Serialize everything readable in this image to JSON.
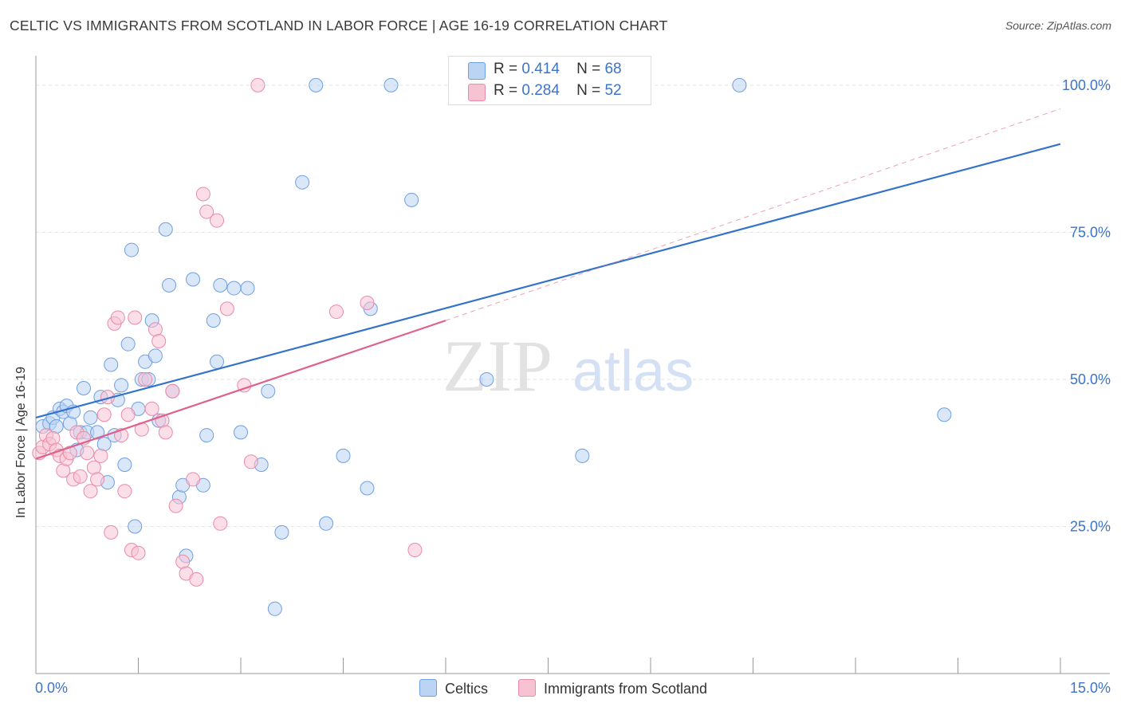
{
  "title": "CELTIC VS IMMIGRANTS FROM SCOTLAND IN LABOR FORCE | AGE 16-19 CORRELATION CHART",
  "source": "Source: ZipAtlas.com",
  "watermark": {
    "zip": "ZIP",
    "atlas": "atlas"
  },
  "colors": {
    "celtics_fill": "#bcd4f4",
    "celtics_stroke": "#6f9fe0",
    "celtics_line": "#3373cc",
    "scot_fill": "#f7c3d3",
    "scot_stroke": "#e98ba8",
    "scot_line": "#e0608c",
    "axis_label": "#3d74c8",
    "grid": "#e3e3e3"
  },
  "legend": {
    "r_label": "R =",
    "n_label": "N =",
    "entries": [
      {
        "r": "0.414",
        "n": "68"
      },
      {
        "r": "0.284",
        "n": "52"
      }
    ]
  },
  "chart_data": {
    "type": "scatter",
    "title": "CELTIC VS IMMIGRANTS FROM SCOTLAND IN LABOR FORCE | AGE 16-19 CORRELATION CHART",
    "xlabel": "",
    "ylabel": "In Labor Force | Age 16-19",
    "xlim": [
      0,
      15
    ],
    "ylim": [
      0,
      105
    ],
    "x_tick_labels": [
      "0.0%",
      "15.0%"
    ],
    "y_ticks": [
      25,
      50,
      75,
      100
    ],
    "y_tick_labels": [
      "25.0%",
      "50.0%",
      "75.0%",
      "100.0%"
    ],
    "grid": true,
    "legend_position": "bottom-center",
    "series": [
      {
        "name": "Celtics",
        "points": [
          [
            0.1,
            42
          ],
          [
            0.2,
            42.5
          ],
          [
            0.25,
            43.5
          ],
          [
            0.3,
            42
          ],
          [
            0.35,
            45
          ],
          [
            0.4,
            44.5
          ],
          [
            0.45,
            45.5
          ],
          [
            0.5,
            42.5
          ],
          [
            0.55,
            44.5
          ],
          [
            0.6,
            38
          ],
          [
            0.65,
            41
          ],
          [
            0.7,
            48.5
          ],
          [
            0.75,
            41
          ],
          [
            0.8,
            43.5
          ],
          [
            0.9,
            41
          ],
          [
            0.95,
            47
          ],
          [
            1.0,
            39
          ],
          [
            1.05,
            32.5
          ],
          [
            1.1,
            52.5
          ],
          [
            1.15,
            40.5
          ],
          [
            1.2,
            46.5
          ],
          [
            1.25,
            49
          ],
          [
            1.3,
            35.5
          ],
          [
            1.35,
            56
          ],
          [
            1.4,
            72
          ],
          [
            1.45,
            25
          ],
          [
            1.5,
            45
          ],
          [
            1.55,
            50
          ],
          [
            1.6,
            53
          ],
          [
            1.65,
            50
          ],
          [
            1.7,
            60
          ],
          [
            1.75,
            54
          ],
          [
            1.8,
            43
          ],
          [
            1.9,
            75.5
          ],
          [
            1.95,
            66
          ],
          [
            2.0,
            48
          ],
          [
            2.1,
            30
          ],
          [
            2.15,
            32
          ],
          [
            2.2,
            20
          ],
          [
            2.3,
            67
          ],
          [
            2.45,
            32
          ],
          [
            2.5,
            40.5
          ],
          [
            2.6,
            60
          ],
          [
            2.65,
            53
          ],
          [
            2.7,
            66
          ],
          [
            2.9,
            65.5
          ],
          [
            3.0,
            41
          ],
          [
            3.1,
            65.5
          ],
          [
            3.3,
            35.5
          ],
          [
            3.4,
            48
          ],
          [
            3.5,
            11
          ],
          [
            3.6,
            24
          ],
          [
            3.9,
            83.5
          ],
          [
            4.1,
            100
          ],
          [
            4.25,
            25.5
          ],
          [
            4.5,
            37
          ],
          [
            4.85,
            31.5
          ],
          [
            4.9,
            62
          ],
          [
            5.2,
            100
          ],
          [
            5.5,
            80.5
          ],
          [
            6.6,
            50
          ],
          [
            8.0,
            37
          ],
          [
            8.5,
            100
          ],
          [
            8.9,
            100
          ],
          [
            10.3,
            100
          ],
          [
            13.3,
            44
          ]
        ]
      },
      {
        "name": "Immigrants from Scotland",
        "points": [
          [
            0.05,
            37.5
          ],
          [
            0.1,
            38.5
          ],
          [
            0.15,
            40.5
          ],
          [
            0.2,
            39
          ],
          [
            0.25,
            40
          ],
          [
            0.3,
            38
          ],
          [
            0.35,
            37
          ],
          [
            0.4,
            34.5
          ],
          [
            0.45,
            36.5
          ],
          [
            0.5,
            37.5
          ],
          [
            0.55,
            33
          ],
          [
            0.6,
            41
          ],
          [
            0.65,
            33.5
          ],
          [
            0.7,
            40
          ],
          [
            0.75,
            37.5
          ],
          [
            0.8,
            31
          ],
          [
            0.85,
            35
          ],
          [
            0.9,
            33
          ],
          [
            0.95,
            37
          ],
          [
            1.0,
            44
          ],
          [
            1.05,
            47
          ],
          [
            1.1,
            24
          ],
          [
            1.15,
            59.5
          ],
          [
            1.2,
            60.5
          ],
          [
            1.25,
            40.5
          ],
          [
            1.3,
            31
          ],
          [
            1.35,
            44
          ],
          [
            1.4,
            21
          ],
          [
            1.45,
            60.5
          ],
          [
            1.5,
            20.5
          ],
          [
            1.55,
            41.5
          ],
          [
            1.6,
            50
          ],
          [
            1.7,
            45
          ],
          [
            1.75,
            58.5
          ],
          [
            1.8,
            56.5
          ],
          [
            1.85,
            43
          ],
          [
            1.9,
            41
          ],
          [
            2.0,
            48
          ],
          [
            2.05,
            28.5
          ],
          [
            2.15,
            19
          ],
          [
            2.2,
            17
          ],
          [
            2.3,
            33
          ],
          [
            2.35,
            16
          ],
          [
            2.45,
            81.5
          ],
          [
            2.5,
            78.5
          ],
          [
            2.65,
            77
          ],
          [
            2.7,
            25.5
          ],
          [
            2.8,
            62
          ],
          [
            3.05,
            49
          ],
          [
            3.15,
            36
          ],
          [
            3.25,
            100
          ],
          [
            4.4,
            61.5
          ],
          [
            4.85,
            63
          ],
          [
            5.55,
            21
          ]
        ]
      }
    ],
    "trendlines": [
      {
        "series": "Celtics",
        "from": [
          0,
          43.5
        ],
        "to": [
          15,
          90
        ]
      },
      {
        "series": "Immigrants from Scotland",
        "from": [
          0,
          36.5
        ],
        "to": [
          6,
          60
        ]
      },
      {
        "series": "Immigrants from Scotland",
        "style": "dashed-extension",
        "from": [
          6,
          60
        ],
        "to": [
          15,
          96
        ]
      }
    ]
  },
  "bottom_legend": [
    "Celtics",
    "Immigrants from Scotland"
  ]
}
